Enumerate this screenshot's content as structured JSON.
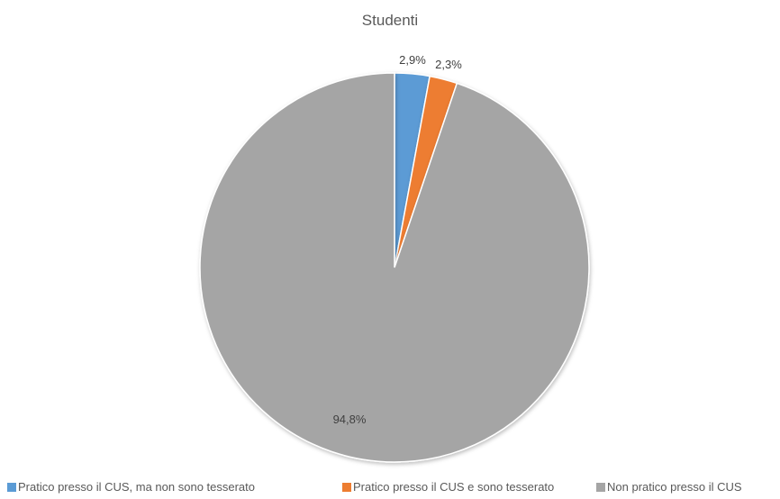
{
  "chart_data": {
    "type": "pie",
    "title": "Studenti",
    "slices": [
      {
        "label": "Pratico presso il CUS, ma non sono tesserato",
        "value": 2.9,
        "display": "2,9%",
        "color": "#5B9BD5"
      },
      {
        "label": "Pratico presso il CUS e sono tesserato",
        "value": 2.3,
        "display": "2,3%",
        "color": "#ED7D31"
      },
      {
        "label": "Non pratico presso il CUS",
        "value": 94.8,
        "display": "94,8%",
        "color": "#A5A5A5"
      }
    ],
    "legend_position": "bottom"
  }
}
